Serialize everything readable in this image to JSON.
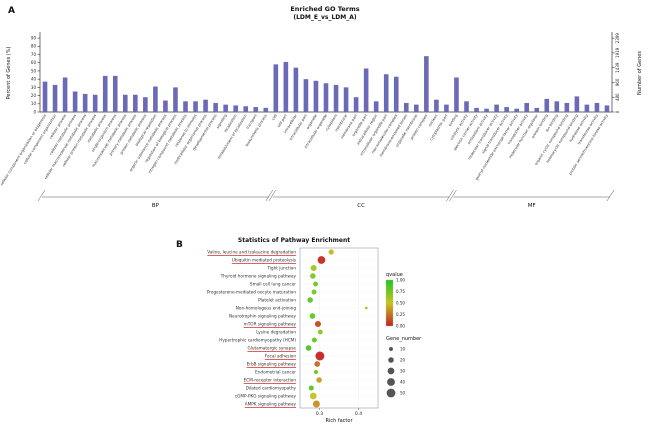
{
  "panelA": {
    "label": "A"
  },
  "panelB": {
    "label": "B"
  },
  "chart_data": [
    {
      "type": "bar",
      "title": "Enriched GO Terms",
      "subtitle": "(LDM_E_vs_LDM_A)",
      "ylabel_left": "Percent of Genes (%)",
      "ylabel_right": "Number of Genes",
      "left_ticks": [
        0,
        10,
        20,
        30,
        40,
        50,
        60,
        70,
        80,
        90
      ],
      "right_ticks": [
        0,
        480,
        960,
        1439,
        1919,
        2399
      ],
      "ylim_left": [
        0,
        95
      ],
      "bar_color": "#6b6ab6",
      "grid": false,
      "groups": [
        {
          "name": "BP",
          "terms": [
            {
              "label": "cellular component organization or biogenesis",
              "value": 37
            },
            {
              "label": "cellular component organization",
              "value": 33
            },
            {
              "label": "cellular process",
              "value": 42
            },
            {
              "label": "cellular metabolic process",
              "value": 25
            },
            {
              "label": "cellular macromolecule metabolic process",
              "value": 22
            },
            {
              "label": "cellular protein metabolic process",
              "value": 21
            },
            {
              "label": "metabolic process",
              "value": 44
            },
            {
              "label": "single-organism process",
              "value": 44
            },
            {
              "label": "macromolecule metabolic process",
              "value": 21
            },
            {
              "label": "primary metabolic process",
              "value": 21
            },
            {
              "label": "protein metabolic process",
              "value": 18
            },
            {
              "label": "biological regulation",
              "value": 31
            },
            {
              "label": "organic substance metabolic process",
              "value": 14
            },
            {
              "label": "regulation of biological process",
              "value": 30
            },
            {
              "label": "nitrogen compound metabolic process",
              "value": 13
            },
            {
              "label": "response to stimulus",
              "value": 13
            },
            {
              "label": "multicellular organismal process",
              "value": 15
            },
            {
              "label": "developmental process",
              "value": 11
            },
            {
              "label": "signaling",
              "value": 9
            },
            {
              "label": "localization",
              "value": 8
            },
            {
              "label": "establishment of localization",
              "value": 7
            },
            {
              "label": "transport",
              "value": 6
            },
            {
              "label": "biosynthetic process",
              "value": 5
            }
          ]
        },
        {
          "name": "CC",
          "terms": [
            {
              "label": "cell",
              "value": 58
            },
            {
              "label": "cell part",
              "value": 61
            },
            {
              "label": "intracellular",
              "value": 54
            },
            {
              "label": "intracellular part",
              "value": 40
            },
            {
              "label": "organelle",
              "value": 38
            },
            {
              "label": "intracellular organelle",
              "value": 35
            },
            {
              "label": "cytoplasm",
              "value": 33
            },
            {
              "label": "membrane",
              "value": 30
            },
            {
              "label": "membrane part",
              "value": 18
            },
            {
              "label": "organelle part",
              "value": 53
            },
            {
              "label": "extracellular region",
              "value": 13
            },
            {
              "label": "intracellular organelle part",
              "value": 46
            },
            {
              "label": "macromolecular complex",
              "value": 43
            },
            {
              "label": "membrane-enclosed lumen",
              "value": 11
            },
            {
              "label": "organelle membrane",
              "value": 9
            },
            {
              "label": "protein complex",
              "value": 68
            },
            {
              "label": "nucleus",
              "value": 15
            },
            {
              "label": "cytoplasmic part",
              "value": 9
            }
          ]
        },
        {
          "name": "MF",
          "terms": [
            {
              "label": "binding",
              "value": 42
            },
            {
              "label": "catalytic activity",
              "value": 13
            },
            {
              "label": "electron carrier activity",
              "value": 5
            },
            {
              "label": "antioxidant activity",
              "value": 4
            },
            {
              "label": "molecular transducer activity",
              "value": 9
            },
            {
              "label": "signal transducer activity",
              "value": 6
            },
            {
              "label": "guanyl-nucleotide exchange factor activity",
              "value": 4
            },
            {
              "label": "transporter activity",
              "value": 11
            },
            {
              "label": "molecular function regulator",
              "value": 5
            },
            {
              "label": "protein binding",
              "value": 16
            },
            {
              "label": "ion binding",
              "value": 13
            },
            {
              "label": "organic cyclic compound binding",
              "value": 11
            },
            {
              "label": "heterocyclic compound binding",
              "value": 19
            },
            {
              "label": "hydrolase activity",
              "value": 9
            },
            {
              "label": "transferase activity",
              "value": 11
            },
            {
              "label": "protein serine/threonine kinase activity",
              "value": 8
            }
          ]
        }
      ]
    },
    {
      "type": "scatter",
      "title": "Statistics of Pathway Enrichment",
      "xlabel": "Rich factor",
      "xlim": [
        0.25,
        0.45
      ],
      "x_ticks": [
        0.3,
        0.4
      ],
      "highlight_color": "#cc0000",
      "legend": {
        "qvalue_title": "qvalue",
        "qvalue_ticks": [
          "1.00",
          "0.75",
          "0.50",
          "0.25",
          "0.00"
        ],
        "gene_number_title": "Gene_number",
        "gene_number_sizes": [
          10,
          20,
          30,
          40,
          50
        ]
      },
      "pathways": [
        {
          "name": "Valine, leucine and isoleucine degradation",
          "rich_factor": 0.33,
          "qvalue": 0.45,
          "gene_number": 18,
          "highlighted": true
        },
        {
          "name": "Ubiquitin mediated proteolysis",
          "rich_factor": 0.305,
          "qvalue": 0.03,
          "gene_number": 38,
          "highlighted": true
        },
        {
          "name": "Tight junction",
          "rich_factor": 0.285,
          "qvalue": 0.62,
          "gene_number": 24,
          "highlighted": false
        },
        {
          "name": "Thyroid hormone signaling pathway",
          "rich_factor": 0.283,
          "qvalue": 0.7,
          "gene_number": 20,
          "highlighted": false
        },
        {
          "name": "Small cell lung cancer",
          "rich_factor": 0.29,
          "qvalue": 0.78,
          "gene_number": 15,
          "highlighted": false
        },
        {
          "name": "Progesterone-mediated oocyte maturation",
          "rich_factor": 0.286,
          "qvalue": 0.74,
          "gene_number": 16,
          "highlighted": false
        },
        {
          "name": "Platelet activation",
          "rich_factor": 0.276,
          "qvalue": 0.82,
          "gene_number": 20,
          "highlighted": false
        },
        {
          "name": "Non-homologous end-joining",
          "rich_factor": 0.42,
          "qvalue": 0.58,
          "gene_number": 5,
          "highlighted": false
        },
        {
          "name": "Neurotrophin signaling pathway",
          "rich_factor": 0.282,
          "qvalue": 0.8,
          "gene_number": 21,
          "highlighted": false
        },
        {
          "name": "mTOR signaling pathway",
          "rich_factor": 0.296,
          "qvalue": 0.12,
          "gene_number": 24,
          "highlighted": true
        },
        {
          "name": "Lysine degradation",
          "rich_factor": 0.302,
          "qvalue": 0.68,
          "gene_number": 15,
          "highlighted": false
        },
        {
          "name": "Hypertrophic cardiomyopathy (HCM)",
          "rich_factor": 0.287,
          "qvalue": 0.79,
          "gene_number": 16,
          "highlighted": false
        },
        {
          "name": "Glutamatergic synapse",
          "rich_factor": 0.272,
          "qvalue": 0.88,
          "gene_number": 20,
          "highlighted": true
        },
        {
          "name": "Focal adhesion",
          "rich_factor": 0.301,
          "qvalue": 0.01,
          "gene_number": 52,
          "highlighted": true
        },
        {
          "name": "ErbB signaling pathway",
          "rich_factor": 0.294,
          "qvalue": 0.22,
          "gene_number": 21,
          "highlighted": true
        },
        {
          "name": "Endometrial cancer",
          "rich_factor": 0.291,
          "qvalue": 0.76,
          "gene_number": 12,
          "highlighted": false
        },
        {
          "name": "ECM-receptor interaction",
          "rich_factor": 0.299,
          "qvalue": 0.38,
          "gene_number": 20,
          "highlighted": true
        },
        {
          "name": "Dilated cardiomyopathy",
          "rich_factor": 0.279,
          "qvalue": 0.83,
          "gene_number": 16,
          "highlighted": false
        },
        {
          "name": "cGMP-PKG signaling pathway",
          "rich_factor": 0.284,
          "qvalue": 0.48,
          "gene_number": 30,
          "highlighted": false
        },
        {
          "name": "AMPK signaling pathway",
          "rich_factor": 0.292,
          "qvalue": 0.33,
          "gene_number": 31,
          "highlighted": true
        }
      ]
    }
  ]
}
